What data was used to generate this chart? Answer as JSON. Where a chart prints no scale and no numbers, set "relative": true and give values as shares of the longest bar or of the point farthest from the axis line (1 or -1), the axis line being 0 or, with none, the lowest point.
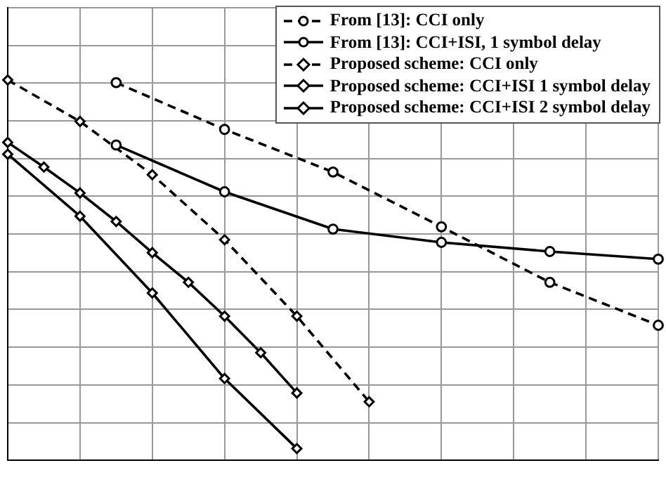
{
  "chart_data": {
    "type": "line",
    "relative": true,
    "categories": [
      null,
      null,
      null,
      null,
      null,
      null,
      null,
      null,
      null,
      null,
      null,
      null,
      null,
      null,
      null,
      null,
      null,
      null,
      null
    ],
    "grid": true,
    "legend": "top right",
    "series": [
      {
        "name": "From [13]: CCI only",
        "color": "#000000",
        "marker": "circle",
        "line_style": "dashed",
        "values": [
          null,
          null,
          null,
          0.993,
          null,
          null,
          0.87,
          null,
          null,
          0.758,
          null,
          null,
          0.614,
          null,
          null,
          0.468,
          null,
          null,
          0.355
        ]
      },
      {
        "name": "From [13]: CCI+ISI, 1 symbol delay",
        "color": "#000000",
        "marker": "circle",
        "line_style": "solid",
        "values": [
          null,
          null,
          null,
          0.829,
          null,
          null,
          0.706,
          null,
          null,
          0.608,
          null,
          null,
          0.573,
          null,
          null,
          0.549,
          null,
          null,
          0.529
        ]
      },
      {
        "name": "Proposed scheme: CCI only",
        "color": "#000000",
        "marker": "diamond",
        "line_style": "dashed",
        "values": [
          1,
          null,
          0.891,
          null,
          0.751,
          null,
          0.58,
          null,
          0.379,
          null,
          0.154,
          null,
          null,
          null,
          null,
          null,
          null,
          null,
          null
        ]
      },
      {
        "name": "Proposed scheme: CCI+ISI 1 symbol delay",
        "color": "#000000",
        "marker": "diamond",
        "line_style": "solid",
        "values": [
          0.836,
          0.771,
          0.703,
          0.628,
          0.546,
          0.468,
          0.379,
          0.283,
          0.177,
          null,
          null,
          null,
          null,
          null,
          null,
          null,
          null,
          null,
          null
        ]
      },
      {
        "name": "Proposed scheme: CCI+ISI 2 symbol delay",
        "color": "#000000",
        "marker": "diamond",
        "line_style": "solid",
        "values": [
          0.805,
          null,
          0.642,
          null,
          0.44,
          null,
          0.215,
          null,
          0.031,
          null,
          null,
          null,
          null,
          null,
          null,
          null,
          null,
          null,
          null
        ]
      }
    ]
  }
}
